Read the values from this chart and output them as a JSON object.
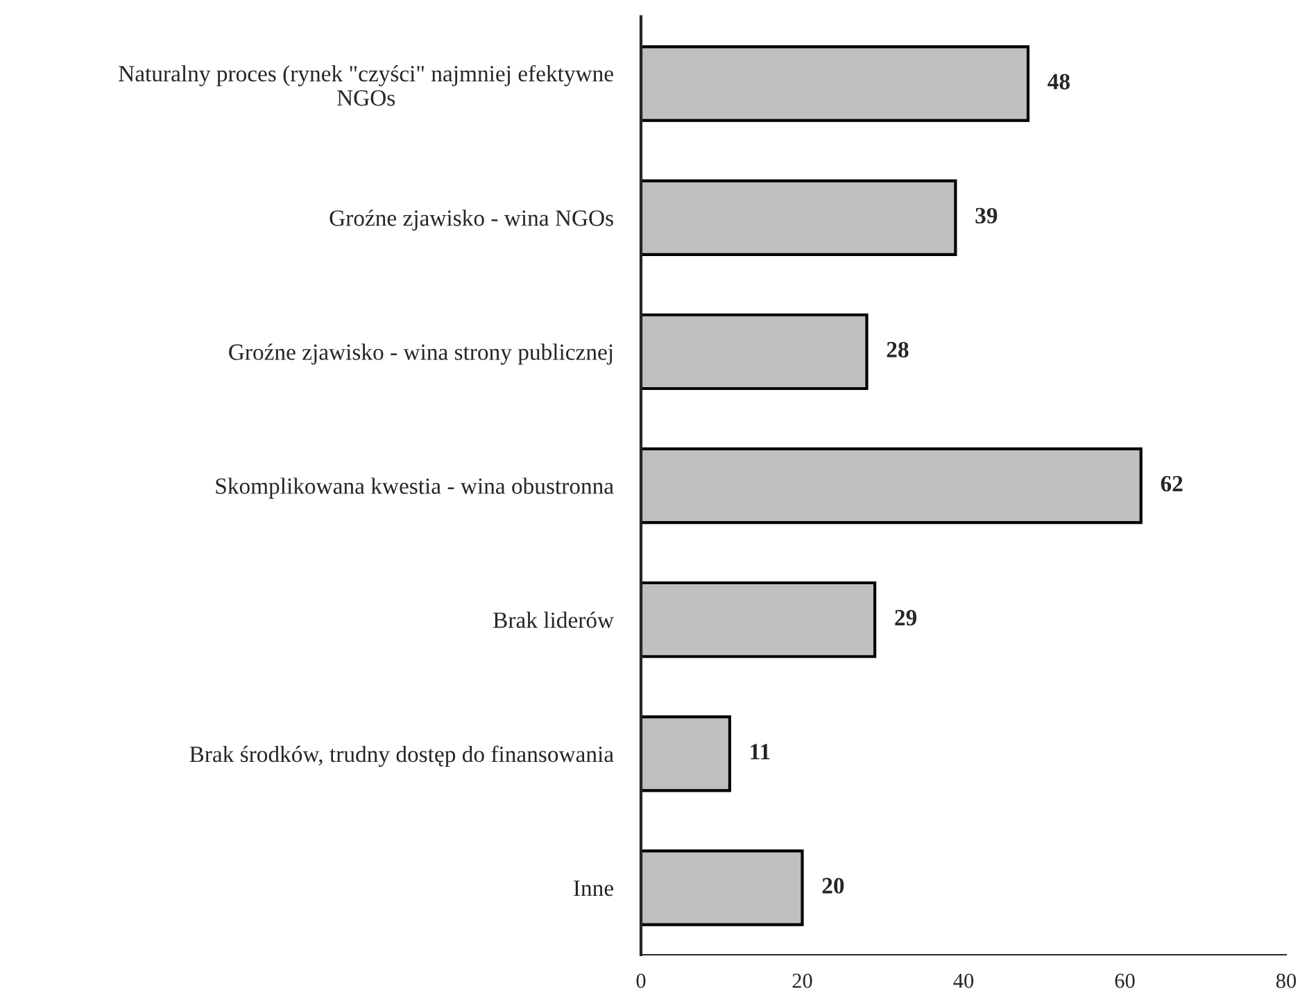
{
  "chart_data": {
    "type": "bar",
    "orientation": "horizontal",
    "categories": [
      "Naturalny proces (rynek \"czyści\" najmniej efektywne\nNGOs",
      "Groźne zjawisko - wina NGOs",
      "Groźne zjawisko - wina strony publicznej",
      "Skomplikowana kwestia - wina obustronna",
      "Brak liderów",
      "Brak środków, trudny dostęp do finansowania",
      "Inne"
    ],
    "values": [
      48,
      39,
      28,
      62,
      29,
      11,
      20
    ],
    "color": "#c0c0c0",
    "xlim": [
      0,
      80
    ],
    "xticks": [
      0,
      20,
      40,
      60,
      80
    ],
    "data_labels": true,
    "grid": false,
    "legend": false
  }
}
